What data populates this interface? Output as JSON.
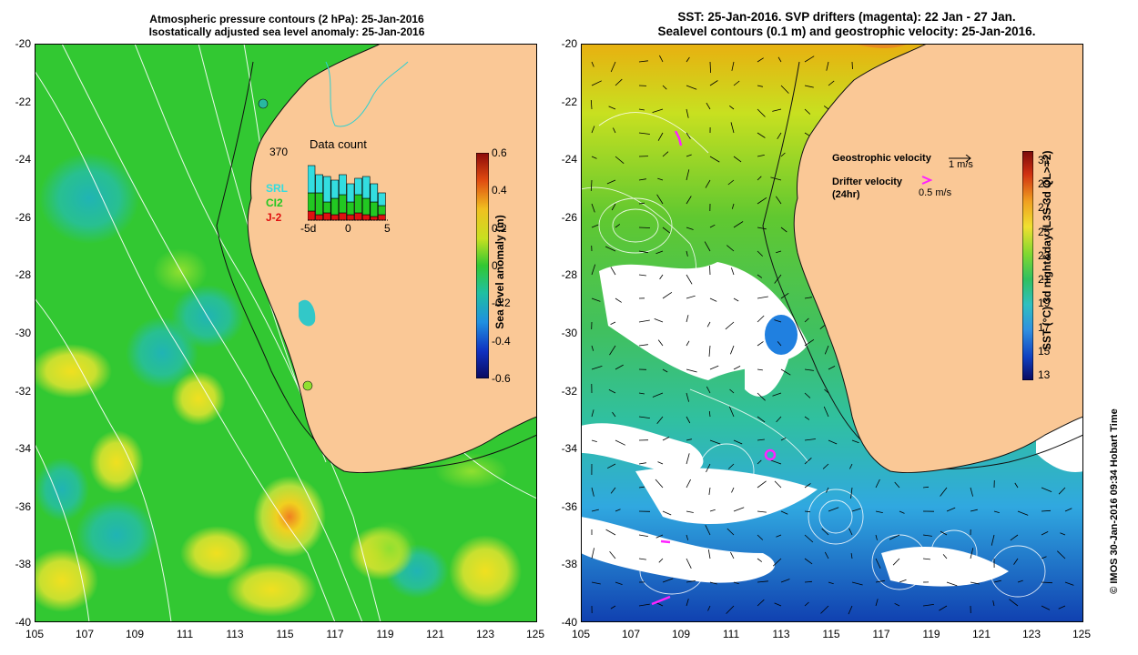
{
  "left_panel": {
    "title_line1": "Atmospheric pressure contours (2 hPa): 25-Jan-2016",
    "title_line2": "Isostatically adjusted sea level anomaly: 25-Jan-2016",
    "colorbar": {
      "label": "Sea level anomaly (m)",
      "ticks": [
        "0.6",
        "0.4",
        "0.2",
        "0",
        "-0.2",
        "-0.4",
        "-0.6"
      ]
    },
    "inset": {
      "title": "Data count",
      "max_label": "370",
      "series": [
        "SRL",
        "CI2",
        "J-2"
      ],
      "x_ticks": [
        "-5d",
        "0",
        "5"
      ],
      "colors": {
        "SRL": "#33dde0",
        "CI2": "#22c822",
        "J-2": "#e01010"
      }
    }
  },
  "right_panel": {
    "title_line1": "SST: 25-Jan-2016. SVP drifters (magenta): 22 Jan - 27 Jan.",
    "title_line2": "Sealevel contours (0.1 m) and geostrophic velocity: 25-Jan-2016.",
    "legend": {
      "geostrophic_label": "Geostrophic velocity",
      "geostrophic_value": "1 m/s",
      "drifter_label": "Drifter velocity",
      "drifter_sub": "(24hr)",
      "drifter_value": "0.5 m/s"
    },
    "colorbar": {
      "label": "SST (°C) 3d night&day (L3S-3d QL>=2)",
      "ticks": [
        "31",
        "29",
        "27",
        "25",
        "23",
        "21",
        "19",
        "17",
        "15",
        "13"
      ]
    }
  },
  "axes": {
    "y_ticks": [
      "-20",
      "-22",
      "-24",
      "-26",
      "-28",
      "-30",
      "-32",
      "-34",
      "-36",
      "-38",
      "-40"
    ],
    "x_ticks": [
      "105",
      "107",
      "109",
      "111",
      "113",
      "115",
      "117",
      "119",
      "121",
      "123",
      "125"
    ]
  },
  "copyright": "© IMOS 30-Jan-2016 09:34 Hobart Time",
  "colors": {
    "land": "#fac896",
    "sla_base": "#32c832",
    "drifter": "#ff22ff"
  }
}
